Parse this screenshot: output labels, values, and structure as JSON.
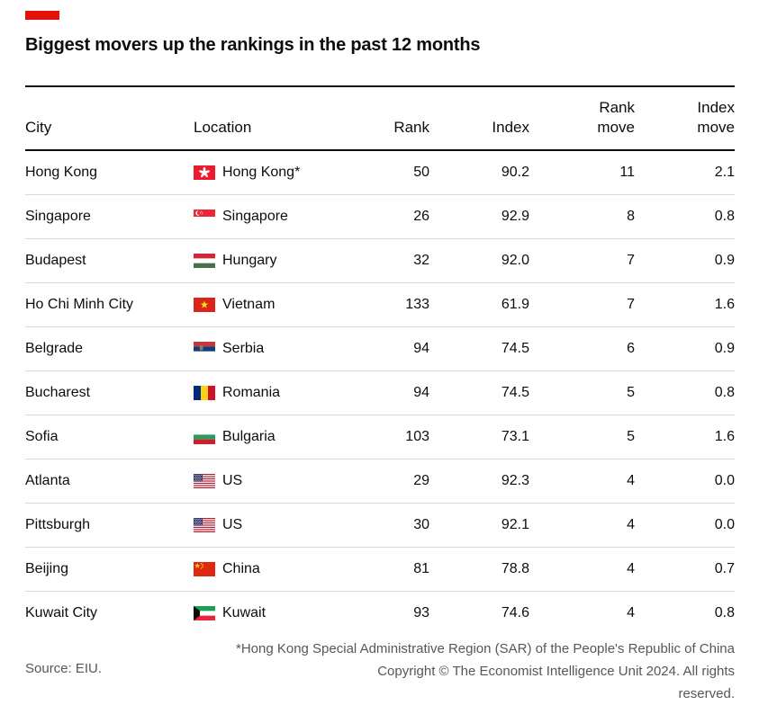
{
  "brand": {
    "accent_color": "#e3120b"
  },
  "title": "Biggest movers up the rankings in the past 12 months",
  "table": {
    "columns": [
      {
        "label": "City",
        "lines": [
          "City"
        ],
        "align": "left"
      },
      {
        "label": "Location",
        "lines": [
          "Location"
        ],
        "align": "left"
      },
      {
        "label": "Rank",
        "lines": [
          "Rank"
        ],
        "align": "right"
      },
      {
        "label": "Index",
        "lines": [
          "Index"
        ],
        "align": "right"
      },
      {
        "label": "Rank move",
        "lines": [
          "Rank",
          "move"
        ],
        "align": "right"
      },
      {
        "label": "Index move",
        "lines": [
          "Index",
          "move"
        ],
        "align": "right"
      }
    ],
    "rows": [
      {
        "city": "Hong Kong",
        "flag_icon": "flag-hong-kong-icon",
        "location": "Hong Kong*",
        "rank": "50",
        "index": "90.2",
        "rank_move": "11",
        "index_move": "2.1"
      },
      {
        "city": "Singapore",
        "flag_icon": "flag-singapore-icon",
        "location": "Singapore",
        "rank": "26",
        "index": "92.9",
        "rank_move": "8",
        "index_move": "0.8"
      },
      {
        "city": "Budapest",
        "flag_icon": "flag-hungary-icon",
        "location": "Hungary",
        "rank": "32",
        "index": "92.0",
        "rank_move": "7",
        "index_move": "0.9"
      },
      {
        "city": "Ho Chi Minh City",
        "flag_icon": "flag-vietnam-icon",
        "location": "Vietnam",
        "rank": "133",
        "index": "61.9",
        "rank_move": "7",
        "index_move": "1.6"
      },
      {
        "city": "Belgrade",
        "flag_icon": "flag-serbia-icon",
        "location": "Serbia",
        "rank": "94",
        "index": "74.5",
        "rank_move": "6",
        "index_move": "0.9"
      },
      {
        "city": "Bucharest",
        "flag_icon": "flag-romania-icon",
        "location": "Romania",
        "rank": "94",
        "index": "74.5",
        "rank_move": "5",
        "index_move": "0.8"
      },
      {
        "city": "Sofia",
        "flag_icon": "flag-bulgaria-icon",
        "location": "Bulgaria",
        "rank": "103",
        "index": "73.1",
        "rank_move": "5",
        "index_move": "1.6"
      },
      {
        "city": "Atlanta",
        "flag_icon": "flag-us-icon",
        "location": "US",
        "rank": "29",
        "index": "92.3",
        "rank_move": "4",
        "index_move": "0.0"
      },
      {
        "city": "Pittsburgh",
        "flag_icon": "flag-us-icon",
        "location": "US",
        "rank": "30",
        "index": "92.1",
        "rank_move": "4",
        "index_move": "0.0"
      },
      {
        "city": "Beijing",
        "flag_icon": "flag-china-icon",
        "location": "China",
        "rank": "81",
        "index": "78.8",
        "rank_move": "4",
        "index_move": "0.7"
      },
      {
        "city": "Kuwait City",
        "flag_icon": "flag-kuwait-icon",
        "location": "Kuwait",
        "rank": "93",
        "index": "74.6",
        "rank_move": "4",
        "index_move": "0.8"
      }
    ]
  },
  "footer": {
    "footnote": "*Hong Kong Special Administrative Region (SAR) of the People's Republic of China",
    "source": "Source: EIU.",
    "copyright_lines": [
      "Copyright © The Economist Intelligence Unit 2024. All rights",
      "reserved."
    ]
  },
  "chart_data": {
    "type": "table",
    "title": "Biggest movers up the rankings in the past 12 months",
    "columns": [
      "City",
      "Location",
      "Rank",
      "Index",
      "Rank move",
      "Index move"
    ],
    "rows": [
      [
        "Hong Kong",
        "Hong Kong*",
        50,
        90.2,
        11,
        2.1
      ],
      [
        "Singapore",
        "Singapore",
        26,
        92.9,
        8,
        0.8
      ],
      [
        "Budapest",
        "Hungary",
        32,
        92.0,
        7,
        0.9
      ],
      [
        "Ho Chi Minh City",
        "Vietnam",
        133,
        61.9,
        7,
        1.6
      ],
      [
        "Belgrade",
        "Serbia",
        94,
        74.5,
        6,
        0.9
      ],
      [
        "Bucharest",
        "Romania",
        94,
        74.5,
        5,
        0.8
      ],
      [
        "Sofia",
        "Bulgaria",
        103,
        73.1,
        5,
        1.6
      ],
      [
        "Atlanta",
        "US",
        29,
        92.3,
        4,
        0.0
      ],
      [
        "Pittsburgh",
        "US",
        30,
        92.1,
        4,
        0.0
      ],
      [
        "Beijing",
        "China",
        81,
        78.8,
        4,
        0.7
      ],
      [
        "Kuwait City",
        "Kuwait",
        93,
        74.6,
        4,
        0.8
      ]
    ],
    "footnote": "*Hong Kong Special Administrative Region (SAR) of the People's Republic of China",
    "source": "EIU"
  }
}
